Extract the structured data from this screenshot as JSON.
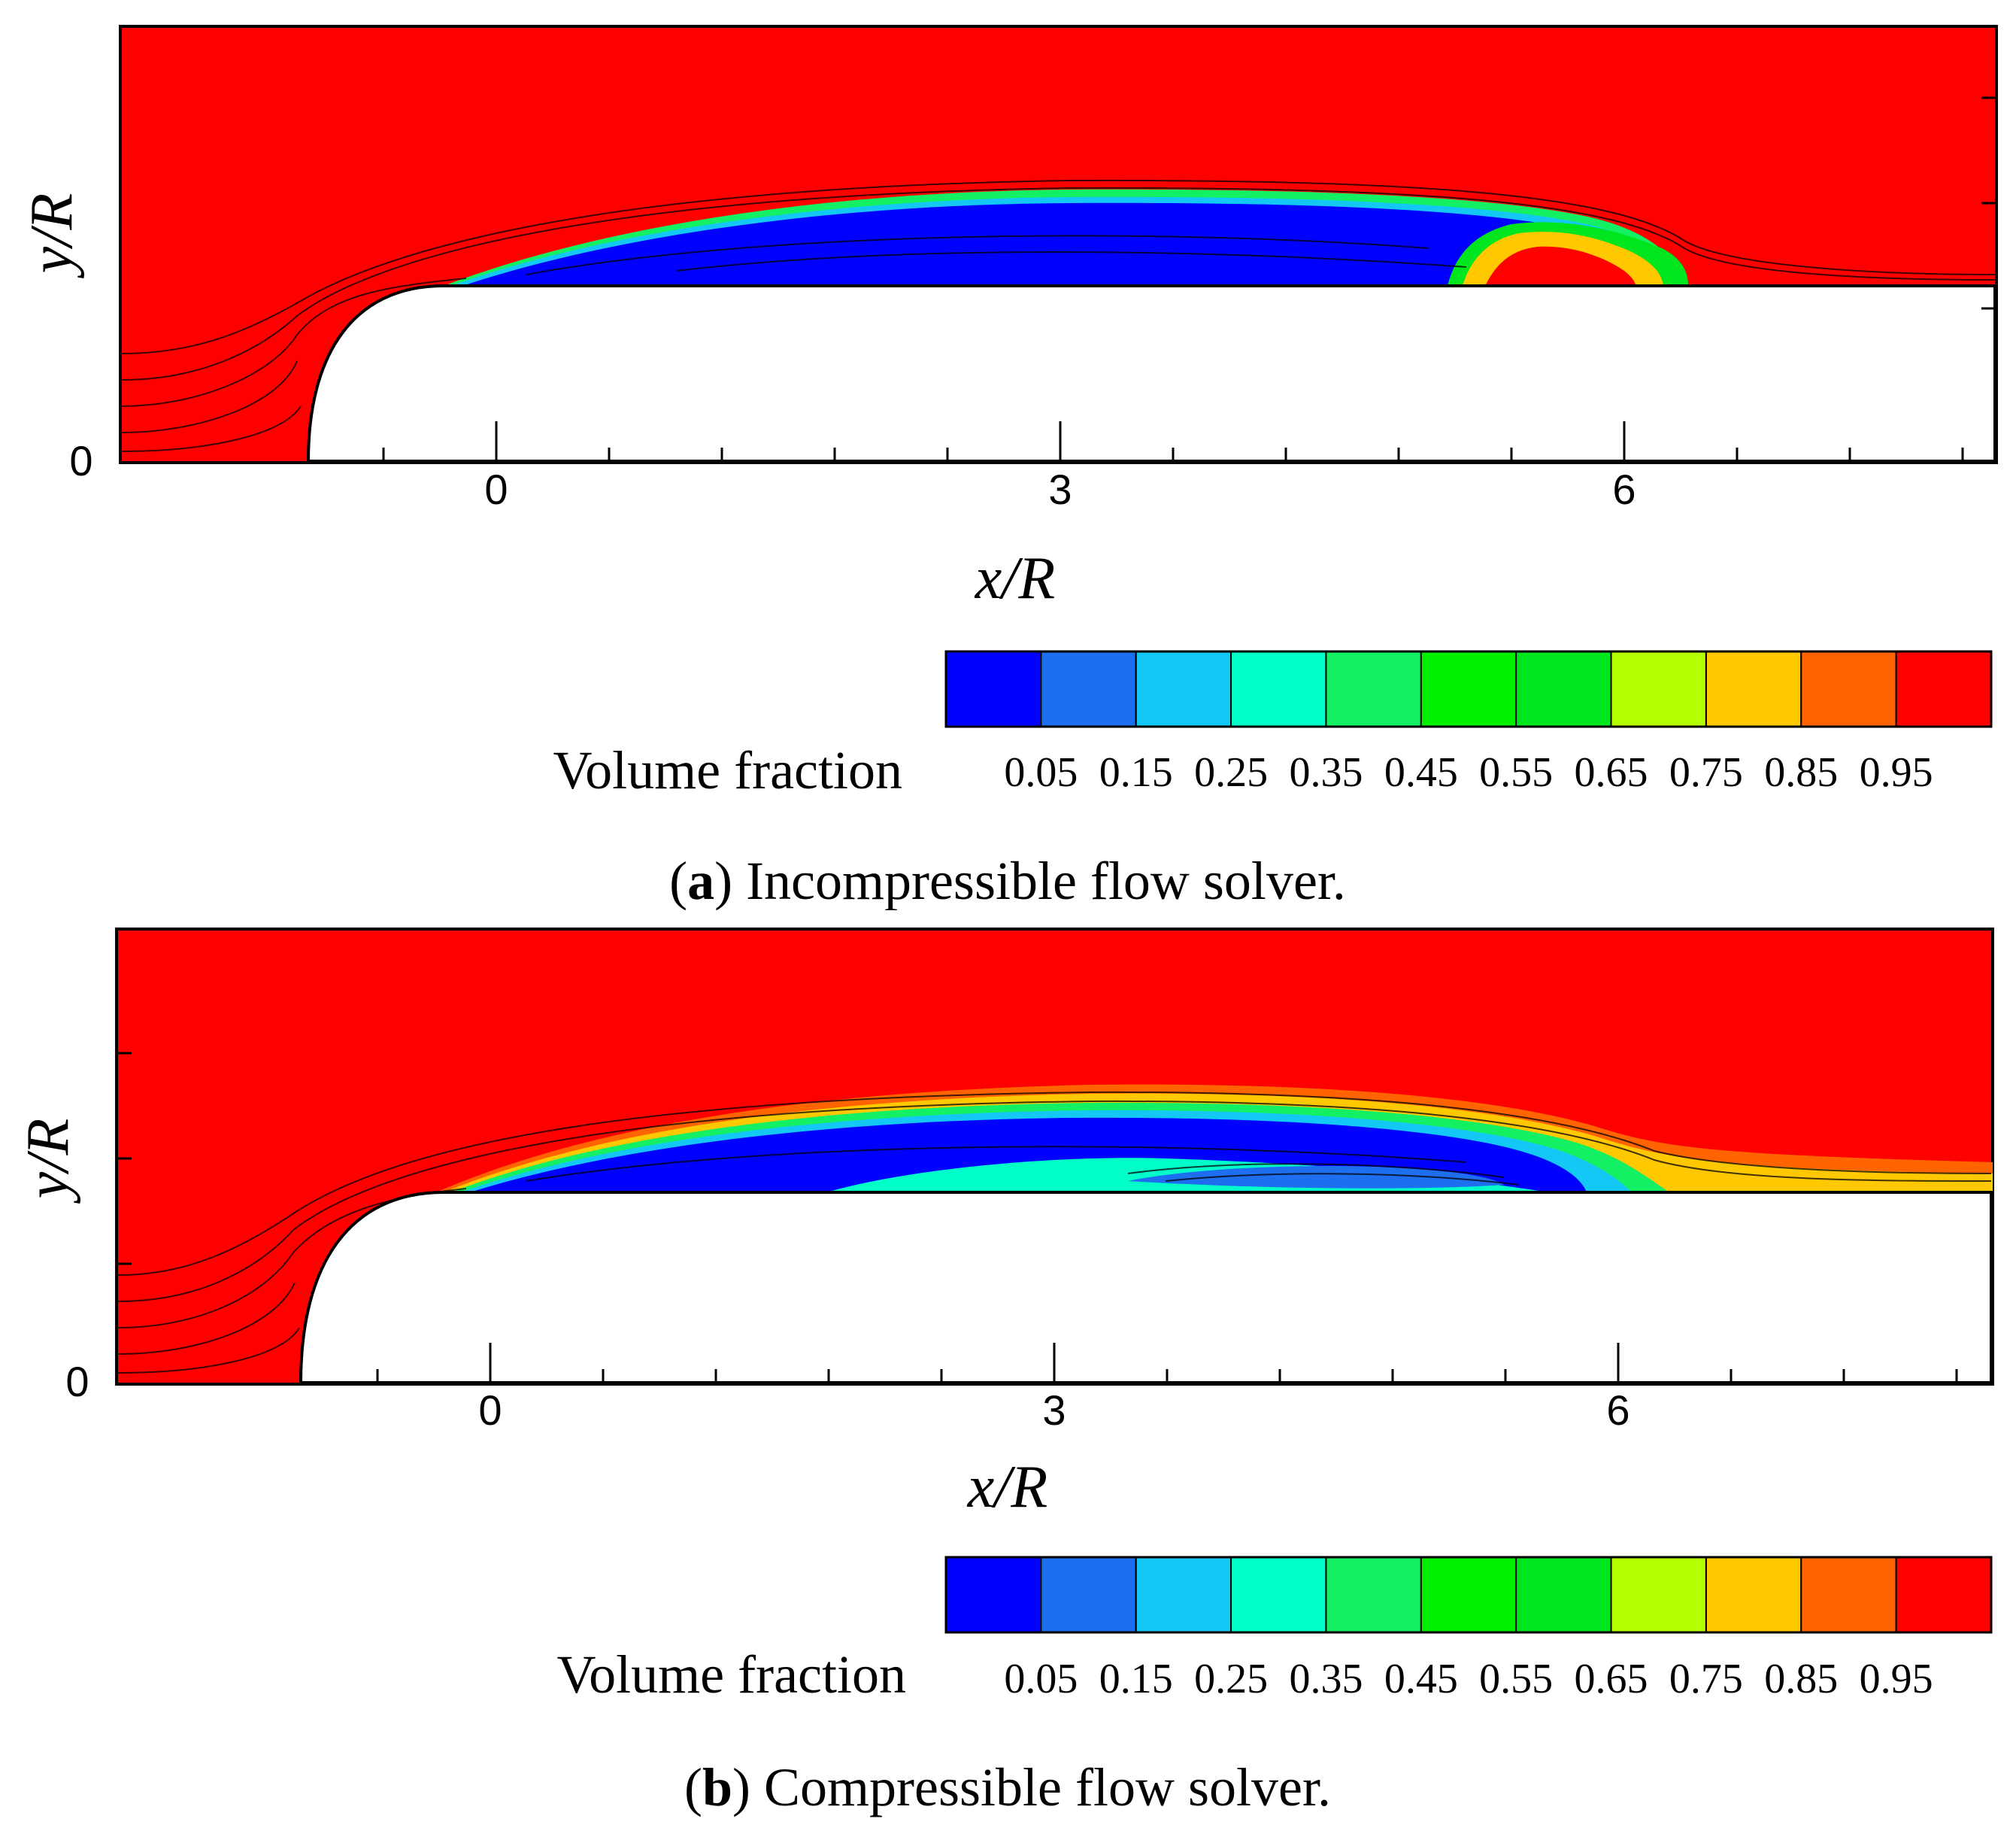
{
  "panels": [
    {
      "id": "a",
      "caption_letter": "a",
      "caption_text": " Incompressible flow solver.",
      "xlabel": "x/R",
      "ylabel": "y/R",
      "xticks": [
        "0",
        "3",
        "6"
      ],
      "yticks": [
        "0"
      ],
      "legend": {
        "title": "Volume fraction",
        "levels": [
          "0.05",
          "0.15",
          "0.25",
          "0.35",
          "0.45",
          "0.55",
          "0.65",
          "0.75",
          "0.85",
          "0.95"
        ]
      }
    },
    {
      "id": "b",
      "caption_letter": "b",
      "caption_text": " Compressible flow solver.",
      "xlabel": "x/R",
      "ylabel": "y/R",
      "xticks": [
        "0",
        "3",
        "6"
      ],
      "yticks": [
        "0"
      ],
      "legend": {
        "title": "Volume fraction",
        "levels": [
          "0.05",
          "0.15",
          "0.25",
          "0.35",
          "0.45",
          "0.55",
          "0.65",
          "0.75",
          "0.85",
          "0.95"
        ]
      }
    }
  ],
  "colormap": [
    "#0000ff",
    "#1e6ef0",
    "#14c8f5",
    "#00ffc8",
    "#14f064",
    "#00f000",
    "#00e61e",
    "#b4ff00",
    "#ffc800",
    "#ff6400",
    "#ff0000"
  ],
  "chart_data": [
    {
      "type": "heatmap",
      "title": "",
      "xlabel": "x/R",
      "ylabel": "y/R",
      "xticks": [
        0,
        3,
        6
      ],
      "yticks": [
        0
      ],
      "xlim": [
        -2,
        8
      ],
      "colorbar_label": "Volume fraction",
      "colorbar_levels": [
        0.05,
        0.15,
        0.25,
        0.35,
        0.45,
        0.55,
        0.65,
        0.75,
        0.85,
        0.95
      ],
      "cavity": {
        "start_x": 0,
        "max_thickness_x": 3.5,
        "closure_x": 6.4
      }
    },
    {
      "type": "heatmap",
      "title": "",
      "xlabel": "x/R",
      "ylabel": "y/R",
      "xticks": [
        0,
        3,
        6
      ],
      "yticks": [
        0
      ],
      "xlim": [
        -2,
        8
      ],
      "colorbar_label": "Volume fraction",
      "colorbar_levels": [
        0.05,
        0.15,
        0.25,
        0.35,
        0.45,
        0.55,
        0.65,
        0.75,
        0.85,
        0.95
      ],
      "cavity": {
        "start_x": 0,
        "max_thickness_x": 4.0,
        "closure_x": 6.0
      }
    }
  ]
}
